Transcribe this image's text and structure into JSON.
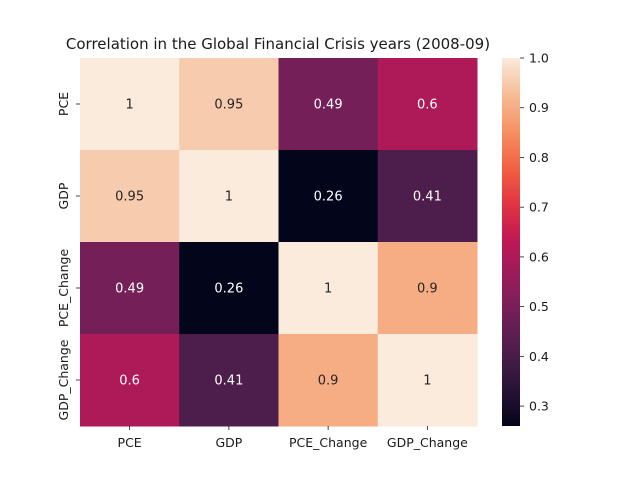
{
  "chart_data": {
    "type": "heatmap",
    "title": "Correlation in the Global Financial Crisis years (2008-09)",
    "x_labels": [
      "PCE",
      "GDP",
      "PCE_Change",
      "GDP_Change"
    ],
    "y_labels": [
      "PCE",
      "GDP",
      "PCE_Change",
      "GDP_Change"
    ],
    "values": [
      [
        1,
        0.95,
        0.49,
        0.6
      ],
      [
        0.95,
        1,
        0.26,
        0.41
      ],
      [
        0.49,
        0.26,
        1,
        0.9
      ],
      [
        0.6,
        0.41,
        0.9,
        1
      ]
    ],
    "annotations": [
      [
        "1",
        "0.95",
        "0.49",
        "0.6"
      ],
      [
        "0.95",
        "1",
        "0.26",
        "0.41"
      ],
      [
        "0.49",
        "0.26",
        "1",
        "0.9"
      ],
      [
        "0.6",
        "0.41",
        "0.9",
        "1"
      ]
    ],
    "colorbar": {
      "range": [
        0.26,
        1.0
      ],
      "ticks": [
        "0.3",
        "0.4",
        "0.5",
        "0.6",
        "0.7",
        "0.8",
        "0.9",
        "1.0"
      ],
      "colormap": "rocket"
    },
    "grid": false
  }
}
